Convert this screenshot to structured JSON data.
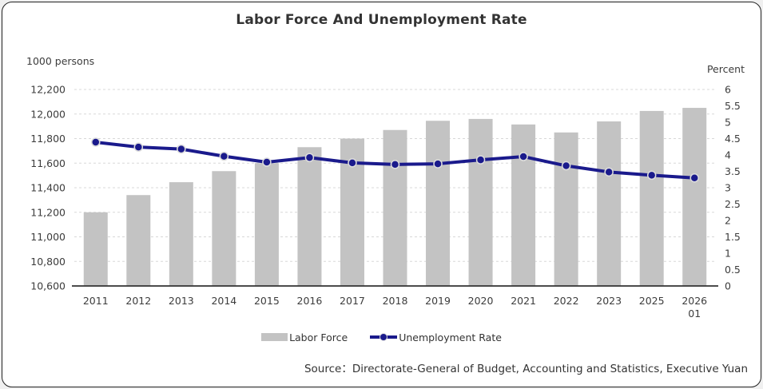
{
  "source": "Source：Directorate-General of Budget, Accounting and Statistics, Executive Yuan",
  "colors": {
    "bar": "#c3c3c3",
    "line": "#1a1a8c",
    "marker_ring": "#dcdcdc",
    "gridline": "#d8d8d8",
    "axis": "#333333",
    "text": "#3c3c3c"
  },
  "chart_data": {
    "type": "combo",
    "title": "Labor Force And Unemployment Rate",
    "categories": [
      "2011",
      "2012",
      "2013",
      "2014",
      "2015",
      "2016",
      "2017",
      "2018",
      "2019",
      "2020",
      "2021",
      "2022",
      "2023",
      "2025",
      "2026 01"
    ],
    "series": [
      {
        "name": "Labor Force",
        "type": "bar",
        "axis": "left",
        "values": [
          11200,
          11340,
          11445,
          11535,
          11600,
          11730,
          11800,
          11870,
          11945,
          11960,
          11915,
          11850,
          11940,
          12025,
          12050
        ]
      },
      {
        "name": "Unemployment Rate",
        "type": "line",
        "axis": "right",
        "values": [
          4.39,
          4.24,
          4.18,
          3.96,
          3.78,
          3.92,
          3.76,
          3.71,
          3.73,
          3.85,
          3.95,
          3.67,
          3.48,
          3.38,
          3.3
        ]
      }
    ],
    "left_axis": {
      "label": "1000 persons",
      "min": 10600,
      "max": 12200,
      "step": 200,
      "ticks": [
        "12,200",
        "12,000",
        "11,800",
        "11,600",
        "11,400",
        "11,200",
        "11,000",
        "10,800",
        "10,600"
      ]
    },
    "right_axis": {
      "label": "Percent",
      "min": 0,
      "max": 6,
      "step": 0.5,
      "ticks": [
        "6",
        "5.5",
        "5",
        "4.5",
        "4",
        "3.5",
        "3",
        "2.5",
        "2",
        "1.5",
        "1",
        "0.5",
        "0"
      ]
    },
    "grid": "horizontal-dashed",
    "legend_position": "bottom"
  }
}
